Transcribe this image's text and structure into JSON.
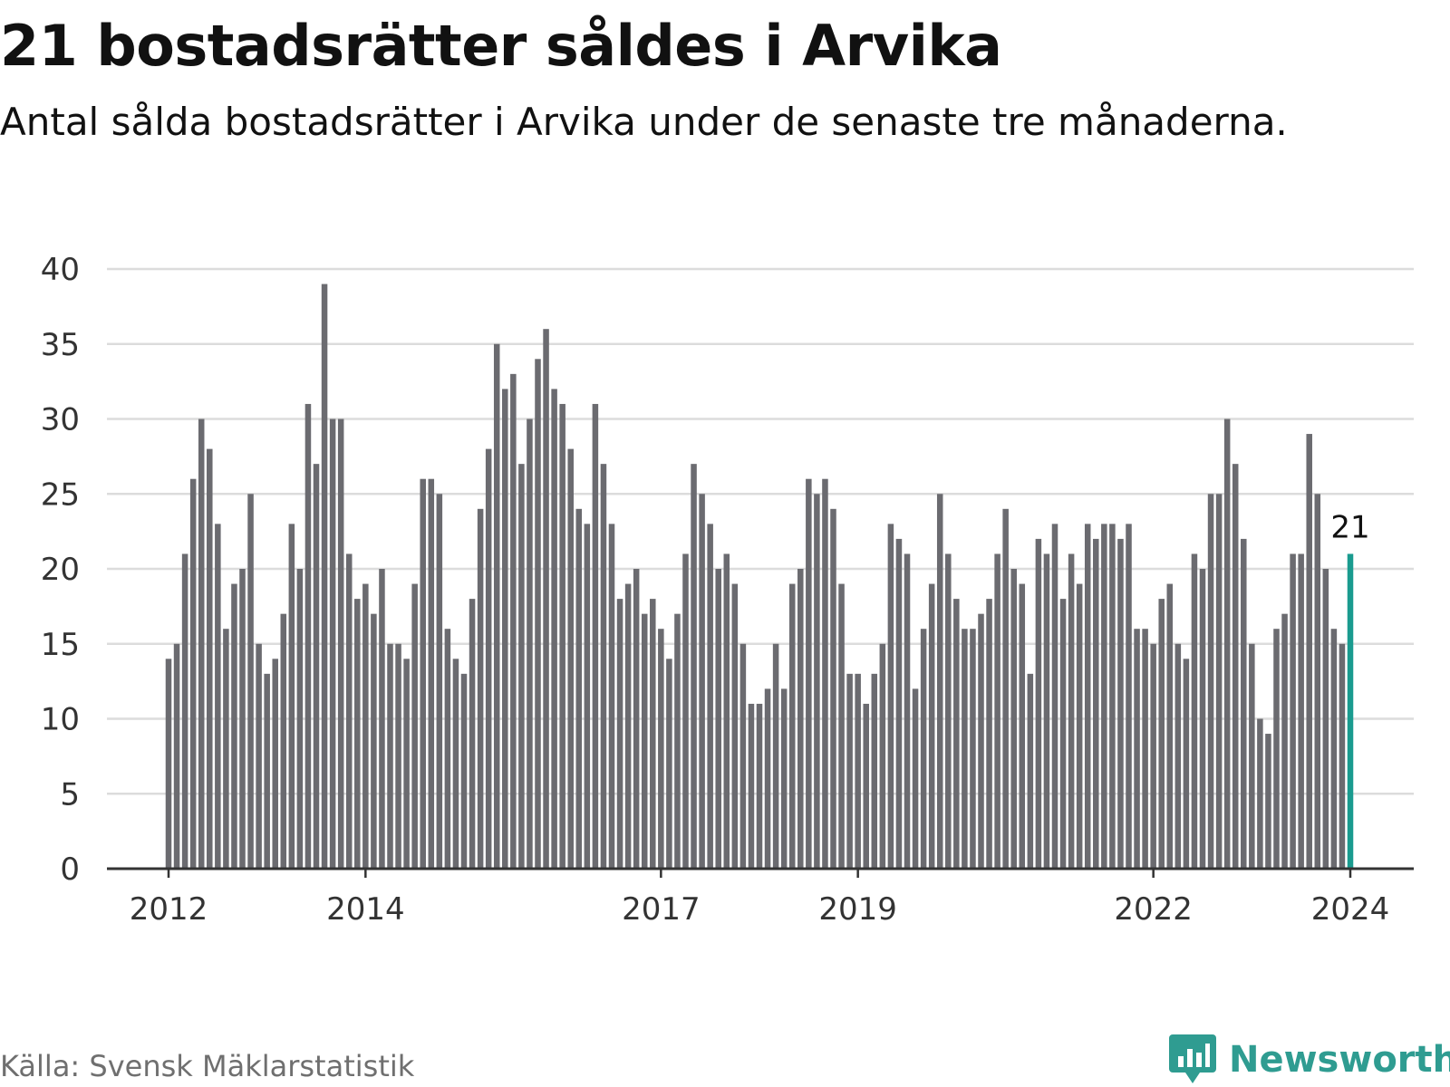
{
  "title": "21 bostadsrätter såldes i Arvika",
  "subtitle": "Antal sålda bostadsrätter i Arvika under de senaste tre månaderna.",
  "source": "Källa: Svensk Mäklarstatistik",
  "brand": "Newsworthy",
  "colors": {
    "bar": "#6b6b70",
    "highlight": "#1a9b8f",
    "grid": "#dcdcdc",
    "axis": "#333333",
    "brand": "#2f9c91",
    "text": "#111111",
    "tick_text": "#333333"
  },
  "chart_data": {
    "type": "bar",
    "title": "21 bostadsrätter såldes i Arvika",
    "ylim": [
      0,
      40
    ],
    "yticks": [
      0,
      5,
      10,
      15,
      20,
      25,
      30,
      35,
      40
    ],
    "xticks": [
      {
        "label": "2012",
        "index": 0
      },
      {
        "label": "2014",
        "index": 24
      },
      {
        "label": "2017",
        "index": 60
      },
      {
        "label": "2019",
        "index": 84
      },
      {
        "label": "2022",
        "index": 120
      },
      {
        "label": "2024",
        "index": 144
      }
    ],
    "values": [
      14,
      15,
      21,
      26,
      30,
      28,
      23,
      16,
      19,
      20,
      25,
      15,
      13,
      14,
      17,
      23,
      20,
      31,
      27,
      39,
      30,
      30,
      21,
      18,
      19,
      17,
      20,
      15,
      15,
      14,
      19,
      26,
      26,
      25,
      16,
      14,
      13,
      18,
      24,
      28,
      35,
      32,
      33,
      27,
      30,
      34,
      36,
      32,
      31,
      28,
      24,
      23,
      31,
      27,
      23,
      18,
      19,
      20,
      17,
      18,
      16,
      14,
      17,
      21,
      27,
      25,
      23,
      20,
      21,
      19,
      15,
      11,
      11,
      12,
      15,
      12,
      19,
      20,
      26,
      25,
      26,
      24,
      19,
      13,
      13,
      11,
      13,
      15,
      23,
      22,
      21,
      12,
      16,
      19,
      25,
      21,
      18,
      16,
      16,
      17,
      18,
      21,
      24,
      20,
      19,
      13,
      22,
      21,
      23,
      18,
      21,
      19,
      23,
      22,
      23,
      23,
      22,
      23,
      16,
      16,
      15,
      18,
      19,
      15,
      14,
      21,
      20,
      25,
      25,
      30,
      27,
      22,
      15,
      10,
      9,
      16,
      17,
      21,
      21,
      29,
      25,
      20,
      16,
      15,
      21
    ],
    "highlight_index": 144,
    "highlight_label": "21"
  }
}
